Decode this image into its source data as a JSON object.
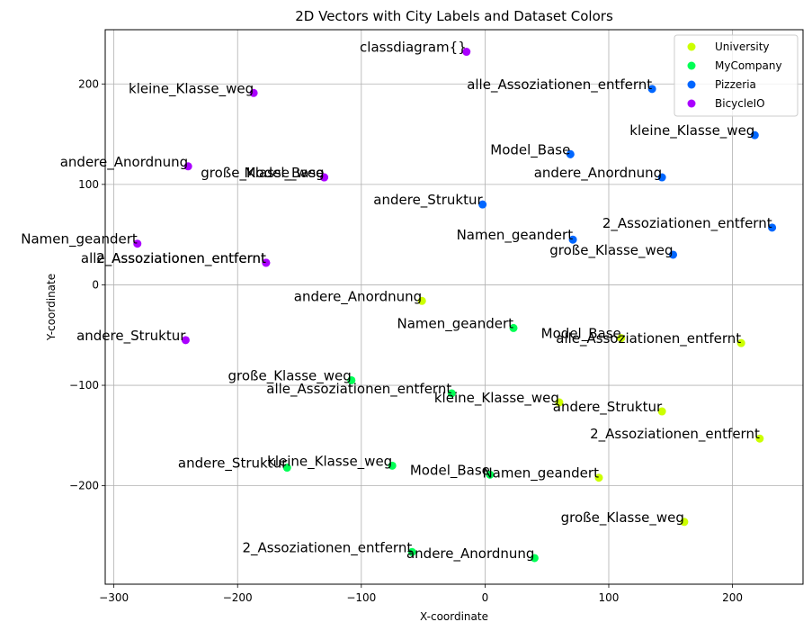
{
  "chart_data": {
    "type": "scatter",
    "title": "2D Vectors with City Labels and Dataset Colors",
    "xlabel": "X-coordinate",
    "ylabel": "Y-coordinate",
    "xlim": [
      -307,
      257
    ],
    "ylim": [
      -298,
      254
    ],
    "xticks": [
      -300,
      -200,
      -100,
      0,
      100,
      200
    ],
    "yticks": [
      -200,
      -100,
      0,
      100,
      200
    ],
    "grid": true,
    "legend_position": "top-right",
    "series": [
      {
        "name": "University",
        "color": "#ccff00",
        "points": [
          {
            "x": -51,
            "y": -16,
            "label": "andere_Anordnung"
          },
          {
            "x": 110,
            "y": -53,
            "label": "Model_Base"
          },
          {
            "x": 207,
            "y": -58,
            "label": "alle_Assoziationen_entfernt"
          },
          {
            "x": 60,
            "y": -117,
            "label": "kleine_Klasse_weg"
          },
          {
            "x": 143,
            "y": -126,
            "label": "andere_Struktur"
          },
          {
            "x": 222,
            "y": -153,
            "label": "2_Assoziationen_entfernt"
          },
          {
            "x": 92,
            "y": -192,
            "label": "Namen_geandert"
          },
          {
            "x": 161,
            "y": -236,
            "label": "große_Klasse_weg"
          }
        ]
      },
      {
        "name": "MyCompany",
        "color": "#00ff55",
        "points": [
          {
            "x": 23,
            "y": -43,
            "label": "Namen_geandert"
          },
          {
            "x": -108,
            "y": -95,
            "label": "große_Klasse_weg"
          },
          {
            "x": -27,
            "y": -108,
            "label": "alle_Assoziationen_entfernt"
          },
          {
            "x": -160,
            "y": -182,
            "label": "andere_Struktur"
          },
          {
            "x": -75,
            "y": -180,
            "label": "kleine_Klasse_weg"
          },
          {
            "x": 4,
            "y": -189,
            "label": "Model_Base"
          },
          {
            "x": -59,
            "y": -266,
            "label": "2_Assoziationen_entfernt"
          },
          {
            "x": 40,
            "y": -272,
            "label": "andere_Anordnung"
          }
        ]
      },
      {
        "name": "Pizzeria",
        "color": "#0066ff",
        "points": [
          {
            "x": 135,
            "y": 195,
            "label": "alle_Assoziationen_entfernt"
          },
          {
            "x": 218,
            "y": 149,
            "label": "kleine_Klasse_weg"
          },
          {
            "x": 69,
            "y": 130,
            "label": "Model_Base"
          },
          {
            "x": 143,
            "y": 107,
            "label": "andere_Anordnung"
          },
          {
            "x": -2,
            "y": 80,
            "label": "andere_Struktur"
          },
          {
            "x": 232,
            "y": 57,
            "label": "2_Assoziationen_entfernt"
          },
          {
            "x": 71,
            "y": 45,
            "label": "Namen_geandert"
          },
          {
            "x": 152,
            "y": 30,
            "label": "große_Klasse_weg"
          }
        ]
      },
      {
        "name": "BicycleIO",
        "color": "#aa00ff",
        "points": [
          {
            "x": -15,
            "y": 232,
            "label": "classdiagram{}"
          },
          {
            "x": -187,
            "y": 191,
            "label": "kleine_Klasse_weg"
          },
          {
            "x": -240,
            "y": 118,
            "label": "andere_Anordnung"
          },
          {
            "x": -130,
            "y": 107,
            "label": "große_Klasse_weg"
          },
          {
            "x": -130,
            "y": 107,
            "label": "Model_Base"
          },
          {
            "x": -281,
            "y": 41,
            "label": "Namen_geandert"
          },
          {
            "x": -177,
            "y": 22,
            "label": "alle_Assoziationen_entfernt"
          },
          {
            "x": -177,
            "y": 22,
            "label": "2_Assoziationen_entfernt"
          },
          {
            "x": -242,
            "y": -55,
            "label": "andere_Struktur"
          }
        ]
      }
    ]
  }
}
